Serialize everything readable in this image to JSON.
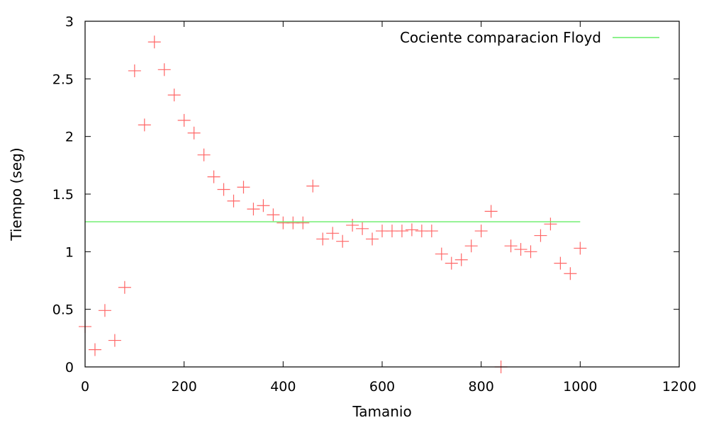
{
  "chart_data": {
    "type": "scatter",
    "xlabel": "Tamanio",
    "ylabel": "Tiempo (seg)",
    "xlim": [
      0,
      1200
    ],
    "ylim": [
      0,
      3
    ],
    "x_ticks": [
      "0",
      "200",
      "400",
      "600",
      "800",
      "1000",
      "1200"
    ],
    "y_ticks": [
      "0",
      "0.5",
      "1",
      "1.5",
      "2",
      "2.5",
      "3"
    ],
    "grid": false,
    "legend_position": "top-right",
    "points": {
      "color": "#ff6666",
      "marker": "plus",
      "x": [
        0,
        20,
        40,
        60,
        80,
        100,
        120,
        140,
        160,
        180,
        200,
        220,
        240,
        260,
        280,
        300,
        320,
        340,
        360,
        380,
        400,
        420,
        440,
        460,
        480,
        500,
        520,
        540,
        560,
        580,
        600,
        620,
        640,
        660,
        680,
        700,
        720,
        740,
        760,
        780,
        800,
        820,
        840,
        860,
        880,
        900,
        920,
        940,
        960,
        980,
        1000
      ],
      "y": [
        0.35,
        0.15,
        0.49,
        0.23,
        0.69,
        2.57,
        2.1,
        2.82,
        2.58,
        2.36,
        2.14,
        2.03,
        1.84,
        1.65,
        1.54,
        1.44,
        1.56,
        1.37,
        1.4,
        1.32,
        1.25,
        1.25,
        1.25,
        1.57,
        1.11,
        1.16,
        1.09,
        1.23,
        1.2,
        1.11,
        1.18,
        1.18,
        1.18,
        1.19,
        1.18,
        1.18,
        0.98,
        0.9,
        0.93,
        1.05,
        1.18,
        1.35,
        0.0,
        1.05,
        1.02,
        1.0,
        1.14,
        1.24,
        0.9,
        0.81,
        1.03
      ]
    },
    "series": [
      {
        "name": "Cociente comparacion Floyd",
        "type": "line",
        "color": "#66ee66",
        "x": [
          0,
          1000
        ],
        "y": [
          1.26,
          1.26
        ]
      }
    ]
  }
}
